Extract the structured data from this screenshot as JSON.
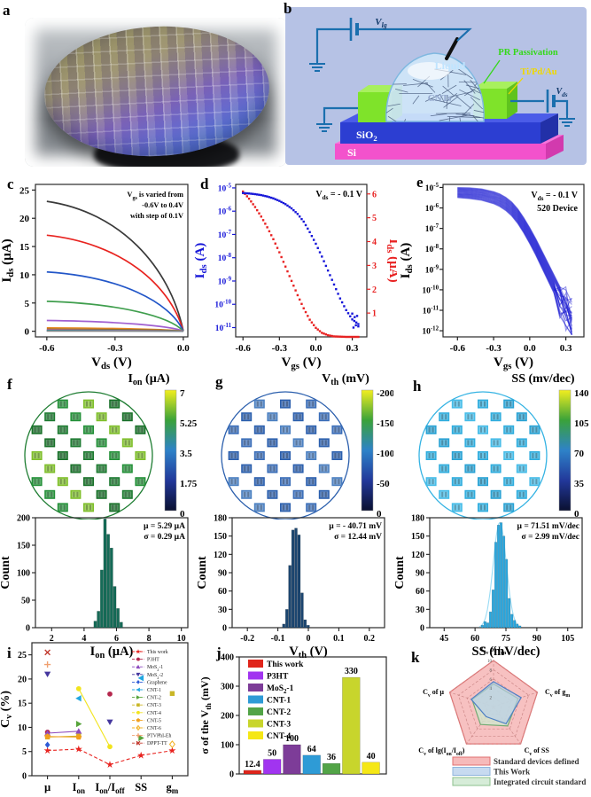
{
  "figure": {
    "labels": {
      "a": "a",
      "b": "b",
      "c": "c",
      "d": "d",
      "e": "e",
      "f": "f",
      "g": "g",
      "h": "h",
      "i": "i",
      "j": "j",
      "k": "k"
    }
  },
  "schematic": {
    "vlg": "V_{lg}",
    "liquid": "Liquid",
    "pr_passivation": "PR Passivation",
    "electrode": "Ti/Pd/Au",
    "cnts": "CNTs",
    "sio2": "SiO_{2}",
    "si": "Si",
    "vds": "V_{ds}",
    "colors": {
      "background": "#b6c2e5",
      "si": "#f352cc",
      "sio2": "#2c3ed2",
      "electrode": "#7fe32a",
      "droplet": "#cfe6f8",
      "wire": "#1b6fae",
      "pr_text": "#35d81a",
      "electrode_text": "#f0d800",
      "liquid_text": "#bfe4ff"
    }
  },
  "chart_data": [
    {
      "panel": "c",
      "type": "line",
      "xlabel": "V_{ds} (V)",
      "ylabel": "I_{ds} (µA)",
      "xlim": [
        -0.65,
        0.02
      ],
      "ylim": [
        -1,
        26
      ],
      "xticks": [
        -0.6,
        -0.3,
        0.0
      ],
      "yticks": [
        0,
        5,
        10,
        15,
        20,
        25
      ],
      "annotation": [
        "V_{gs} is varied from",
        "-0.6V to 0.4V",
        "with step of 0.1V"
      ],
      "series": [
        {
          "vgs": "-0.6",
          "peak": 23.0,
          "color": "#3a3a3a"
        },
        {
          "vgs": "-0.5",
          "peak": 17.0,
          "color": "#e8231f"
        },
        {
          "vgs": "-0.4",
          "peak": 10.5,
          "color": "#2256c8"
        },
        {
          "vgs": "-0.3",
          "peak": 5.3,
          "color": "#3f9e4d"
        },
        {
          "vgs": "-0.2",
          "peak": 1.9,
          "color": "#a05fd0"
        },
        {
          "vgs": "-0.1",
          "peak": 0.6,
          "color": "#e8861f"
        },
        {
          "vgs": "0.0",
          "peak": 0.35,
          "color": "#8a6f2f"
        },
        {
          "vgs": "0.1",
          "peak": 0.2,
          "color": "#d957c8"
        },
        {
          "vgs": "0.2",
          "peak": 0.12,
          "color": "#17a0a0"
        },
        {
          "vgs": "0.3",
          "peak": 0.07,
          "color": "#1f3a8a"
        },
        {
          "vgs": "0.4",
          "peak": 0.04,
          "color": "#888888"
        }
      ]
    },
    {
      "panel": "d",
      "type": "line",
      "xlabel": "V_{gs} (V)",
      "ylabel_left": "I_{ds} (A)",
      "ylabel_right": "I_{ds} (µA)",
      "xlim": [
        -0.66,
        0.42
      ],
      "xticks": [
        -0.6,
        -0.3,
        0.0,
        0.3
      ],
      "log_decades": [
        -5,
        -6,
        -7,
        -8,
        -9,
        -10,
        -11
      ],
      "right_lim": [
        0,
        6.4
      ],
      "right_ticks": [
        1,
        2,
        3,
        4,
        5,
        6
      ],
      "annotation": [
        "V_{ds} = - 0.1 V"
      ],
      "blue_color": "#1515d8",
      "red_color": "#e82222",
      "x": [
        -0.6,
        -0.55,
        -0.5,
        -0.45,
        -0.4,
        -0.35,
        -0.3,
        -0.25,
        -0.2,
        -0.15,
        -0.1,
        -0.05,
        0.0,
        0.05,
        0.1,
        0.15,
        0.2,
        0.25,
        0.3,
        0.35
      ],
      "blue_logI": [
        -5.22,
        -5.24,
        -5.27,
        -5.31,
        -5.37,
        -5.45,
        -5.56,
        -5.7,
        -5.88,
        -6.12,
        -6.45,
        -6.9,
        -7.4,
        -7.95,
        -8.55,
        -9.15,
        -9.75,
        -10.25,
        -10.65,
        -10.85
      ],
      "red_uA": [
        6.1,
        5.8,
        5.45,
        5.05,
        4.6,
        4.1,
        3.55,
        2.95,
        2.35,
        1.75,
        1.2,
        0.72,
        0.38,
        0.17,
        0.07,
        0.02,
        0.01,
        0.0,
        0.0,
        0.0
      ],
      "noise_tail": [
        [
          0.3,
          -10.4
        ],
        [
          0.31,
          -11.0
        ],
        [
          0.32,
          -10.55
        ],
        [
          0.33,
          -10.9
        ],
        [
          0.34,
          -10.5
        ],
        [
          0.35,
          -10.95
        ]
      ]
    },
    {
      "panel": "e",
      "type": "line",
      "xlabel": "V_{gs} (V)",
      "ylabel": "I_{ds} (A)",
      "xlim": [
        -0.72,
        0.45
      ],
      "xticks": [
        -0.6,
        -0.3,
        0.0,
        0.3
      ],
      "log_decades": [
        -5,
        -6,
        -7,
        -8,
        -9,
        -10,
        -11,
        -12
      ],
      "annotation": [
        "V_{ds} = - 0.1 V",
        "520 Device"
      ],
      "band_color": "#1717d0",
      "n_curves": 26,
      "base_x": [
        -0.6,
        -0.5,
        -0.4,
        -0.3,
        -0.25,
        -0.2,
        -0.15,
        -0.1,
        -0.05,
        0.0,
        0.05,
        0.1,
        0.15,
        0.2,
        0.25,
        0.3,
        0.35
      ],
      "base_logI": [
        -5.25,
        -5.28,
        -5.35,
        -5.5,
        -5.62,
        -5.8,
        -6.05,
        -6.4,
        -6.85,
        -7.35,
        -7.9,
        -8.5,
        -9.1,
        -9.7,
        -10.3,
        -10.9,
        -11.5
      ]
    },
    {
      "panel": "f-map",
      "type": "heatmap",
      "title": "I_{on} (µA)",
      "colorbar_ticks": [
        "7",
        "5.25",
        "3.5",
        "1.75",
        "0"
      ],
      "ring": "#1e7d32",
      "palette": [
        "#1c7a30",
        "#20842f",
        "#187029",
        "#2a9140",
        "#7fbf2a",
        "#1c7a30",
        "#239038",
        "#1a752c"
      ]
    },
    {
      "panel": "f-hist",
      "type": "bar",
      "xlabel": "I_{on} (µA)",
      "ylabel": "Count",
      "xlim": [
        1,
        10.4
      ],
      "xticks": [
        2,
        4,
        6,
        8,
        10
      ],
      "ylim": [
        0,
        200
      ],
      "yticks": [
        0,
        50,
        100,
        150,
        200
      ],
      "bin_start": 4.6,
      "bin_width": 0.2,
      "counts": [
        12,
        30,
        105,
        198,
        170,
        145,
        75,
        35,
        10
      ],
      "color": "#156b57",
      "annotation": [
        "µ = 5.29 µA",
        "σ = 0.29 µA"
      ]
    },
    {
      "panel": "g-map",
      "type": "heatmap",
      "title": "V_{th} (mV)",
      "colorbar_ticks": [
        "-200",
        "-150",
        "-100",
        "-50",
        "0"
      ],
      "ring": "#2b5fad",
      "palette": [
        "#2b5fad",
        "#2455a2",
        "#3a6db8",
        "#6b9fd4",
        "#2b5fad",
        "#1f4c96",
        "#4a7fc1",
        "#2b5fad"
      ]
    },
    {
      "panel": "g-hist",
      "type": "bar",
      "xlabel": "V_{th} (V)",
      "ylabel": "Count",
      "xlim": [
        -0.25,
        0.25
      ],
      "xticks": [
        -0.2,
        -0.1,
        0.0,
        0.1,
        0.2
      ],
      "ylim": [
        0,
        180
      ],
      "yticks": [
        0,
        30,
        60,
        90,
        120,
        150,
        180
      ],
      "bin_start": -0.085,
      "bin_width": 0.01,
      "counts": [
        6,
        30,
        102,
        160,
        163,
        152,
        57,
        13,
        4
      ],
      "color": "#1c4670",
      "annotation": [
        "µ = - 40.71 mV",
        "σ = 12.44 mV"
      ]
    },
    {
      "panel": "h-map",
      "type": "heatmap",
      "title": "SS (mv/dec)",
      "colorbar_ticks": [
        "140",
        "105",
        "70",
        "35",
        "0"
      ],
      "ring": "#35b3e3",
      "palette": [
        "#2fadde",
        "#3ab8e8",
        "#28a2d4",
        "#52c2ec",
        "#2fadde",
        "#35b3e3",
        "#45bce8",
        "#2fadde"
      ]
    },
    {
      "panel": "h-hist",
      "type": "bar",
      "xlabel": "SS (mV/dec)",
      "ylabel": "Count",
      "xlim": [
        38,
        112
      ],
      "xticks": [
        45,
        60,
        75,
        90,
        105
      ],
      "ylim": [
        0,
        180
      ],
      "yticks": [
        0,
        30,
        60,
        90,
        120,
        150,
        180
      ],
      "bin_start": 63.0,
      "bin_width": 1.3,
      "counts": [
        4,
        10,
        8,
        26,
        62,
        140,
        168,
        172,
        150,
        112,
        48,
        22,
        12,
        6,
        3
      ],
      "color": "#29a8e0",
      "fit": {
        "mu": 72.0,
        "sigma": 3.2,
        "peak": 172
      },
      "annotation": [
        "µ = 71.51 mV/dec",
        "σ = 2.99 mV/dec"
      ]
    },
    {
      "panel": "i",
      "type": "scatter",
      "ylabel": "C_{v} (%)",
      "ylim": [
        0,
        27.5
      ],
      "yticks": [
        0,
        5,
        10,
        15,
        20,
        25
      ],
      "categories": [
        "µ",
        "I_{on}",
        "I_{on}/I_{off}",
        "SS",
        "g_{m}"
      ],
      "series": [
        {
          "name": "This work",
          "marker": "star",
          "color": "#e8231f",
          "line": "dash",
          "values": [
            5.2,
            5.5,
            2.3,
            4.2,
            5.2
          ]
        },
        {
          "name": "P3HT",
          "marker": "circle",
          "color": "#b5274d",
          "values": [
            9.0,
            null,
            16.9,
            null,
            null
          ]
        },
        {
          "name": "MoS_{2}-1",
          "marker": "tri-up",
          "color": "#8c4bbf",
          "line": "solid",
          "values": [
            8.8,
            9.2,
            null,
            null,
            null
          ]
        },
        {
          "name": "MoS_{2}-2",
          "marker": "tri-down",
          "color": "#45379e",
          "values": [
            21.0,
            null,
            11.1,
            null,
            null
          ]
        },
        {
          "name": "Graphene",
          "marker": "diamond",
          "color": "#2e5bd7",
          "values": [
            6.4,
            null,
            null,
            null,
            null
          ]
        },
        {
          "name": "CNT-1",
          "marker": "tri-left",
          "color": "#22a7e0",
          "values": [
            null,
            16.0,
            null,
            20.2,
            null
          ]
        },
        {
          "name": "CNT-2",
          "marker": "tri-right",
          "color": "#57a43b",
          "values": [
            null,
            10.7,
            null,
            7.8,
            null
          ]
        },
        {
          "name": "CNT-3",
          "marker": "square",
          "color": "#c9b626",
          "line": "solid",
          "values": [
            8.0,
            8.2,
            null,
            null,
            17.0
          ]
        },
        {
          "name": "CNT-4",
          "marker": "circle",
          "color": "#f2e41e",
          "line": "solid",
          "values": [
            null,
            18.0,
            6.0,
            null,
            null
          ]
        },
        {
          "name": "CNT-5",
          "marker": "pentagon",
          "color": "#f2a01e",
          "line": "solid",
          "values": [
            8.1,
            8.0,
            null,
            null,
            null
          ]
        },
        {
          "name": "CNT-6",
          "marker": "diamond-open",
          "color": "#f2b01e",
          "values": [
            null,
            null,
            null,
            null,
            6.5
          ]
        },
        {
          "name": "PTVPhI-Eh",
          "marker": "plus",
          "color": "#f0a070",
          "values": [
            23.0,
            null,
            null,
            null,
            null
          ]
        },
        {
          "name": "DPPT-TT",
          "marker": "x",
          "color": "#c23a2f",
          "values": [
            25.5,
            null,
            null,
            null,
            null
          ]
        }
      ]
    },
    {
      "panel": "j",
      "type": "bar",
      "ylabel": "σ of the V_{th} (mV)",
      "ylim": [
        0,
        400
      ],
      "yticks": [
        0,
        100,
        200,
        300,
        400
      ],
      "categories": [
        "This work",
        "P3HT",
        "MoS_{2}-1",
        "CNT-1",
        "CNT-2",
        "CNT-3",
        "CNT-4"
      ],
      "values": [
        12.4,
        50,
        100,
        64,
        36,
        330,
        40
      ],
      "value_labels": [
        "12.4",
        "50",
        "100",
        "64",
        "36",
        "330",
        "40"
      ],
      "colors": [
        "#e0251b",
        "#a134f0",
        "#7d3c98",
        "#2e9bd6",
        "#52a447",
        "#c8d52c",
        "#f5e716"
      ]
    },
    {
      "panel": "k",
      "type": "radar",
      "rings": [
        2,
        4,
        6,
        8,
        10
      ],
      "axes": [
        "C_{v} of I_{on}",
        "C_{v} of g_{m}",
        "C_{v} of SS",
        "C_{v} of lg(I_{on}/I_{off})",
        "C_{v} of µ"
      ],
      "series": [
        {
          "name": "Standard devices defined",
          "values": [
            10,
            10,
            10,
            10,
            10
          ],
          "fill": "#f6baba",
          "stroke": "#e07070"
        },
        {
          "name": "Integrated circuit standard",
          "values": [
            4.9,
            5.6,
            5.2,
            4.8,
            4.9
          ],
          "fill": "#cfe6cd",
          "stroke": "#74aa74"
        },
        {
          "name": "This Work",
          "values": [
            5.4,
            6.3,
            4.6,
            2.7,
            5.1
          ],
          "fill": "#b9d0ea",
          "stroke": "#4d7fc4"
        }
      ],
      "legend_order": [
        "Standard devices defined",
        "This Work",
        "Integrated circuit standard"
      ],
      "legend_fills": [
        "#f6baba",
        "#c7daf0",
        "#d6ecd8"
      ],
      "legend_strokes": [
        "#e07070",
        "#8fb4dc",
        "#8cc08c"
      ]
    }
  ]
}
